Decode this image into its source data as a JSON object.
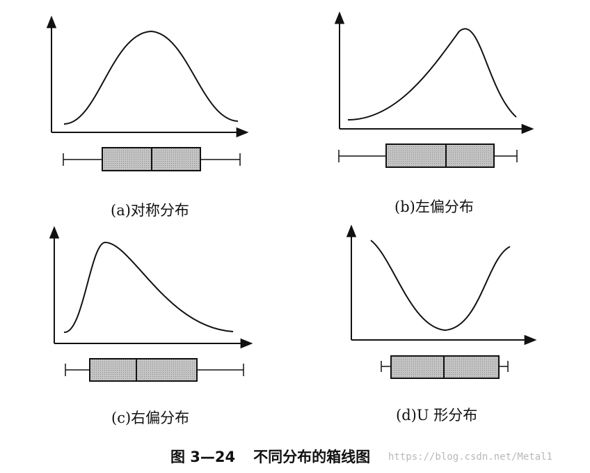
{
  "panels": [
    {
      "label": "(a)对称分布",
      "shape": "symmetric"
    },
    {
      "label": "(b)左偏分布",
      "shape": "left-skewed"
    },
    {
      "label": "(c)右偏分布",
      "shape": "right-skewed"
    },
    {
      "label": "(d)U 形分布",
      "shape": "u-shaped"
    }
  ],
  "caption": {
    "number": "图 3—24",
    "title": "不同分布的箱线图"
  },
  "watermark": "https://blog.csdn.net/Metal1",
  "colors": {
    "box_fill": "#bdbdbd",
    "ink": "#111111"
  }
}
